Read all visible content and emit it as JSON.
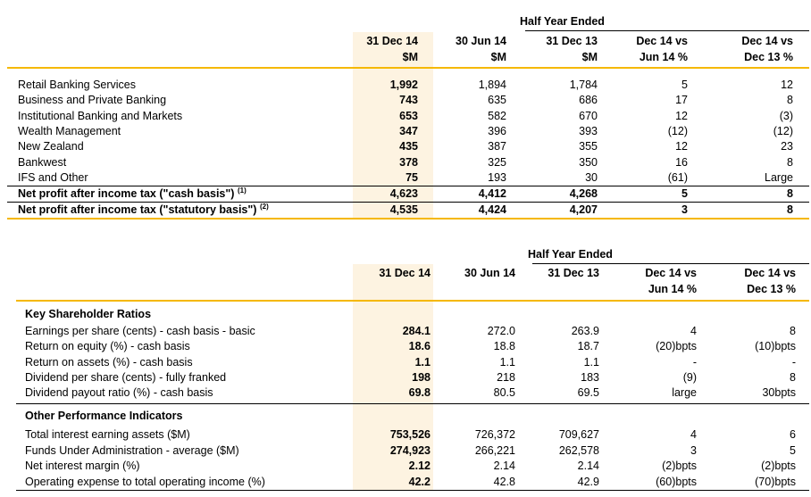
{
  "table1": {
    "group_header": "Half Year Ended",
    "columns": [
      {
        "line1": "31 Dec 14",
        "line2": "$M"
      },
      {
        "line1": "30 Jun 14",
        "line2": "$M"
      },
      {
        "line1": "31 Dec 13",
        "line2": "$M"
      },
      {
        "line1": "Dec 14 vs",
        "line2": "Jun 14 %"
      },
      {
        "line1": "Dec 14 vs",
        "line2": "Dec 13 %"
      }
    ],
    "rows": [
      {
        "label": "Retail Banking Services",
        "v": [
          "1,992",
          "1,894",
          "1,784",
          "5",
          "12"
        ]
      },
      {
        "label": "Business and Private Banking",
        "v": [
          "743",
          "635",
          "686",
          "17",
          "8"
        ]
      },
      {
        "label": "Institutional Banking and Markets",
        "v": [
          "653",
          "582",
          "670",
          "12",
          "(3)"
        ]
      },
      {
        "label": "Wealth Management",
        "v": [
          "347",
          "396",
          "393",
          "(12)",
          "(12)"
        ]
      },
      {
        "label": "New Zealand",
        "v": [
          "435",
          "387",
          "355",
          "12",
          "23"
        ]
      },
      {
        "label": "Bankwest",
        "v": [
          "378",
          "325",
          "350",
          "16",
          "8"
        ]
      },
      {
        "label": "IFS and Other",
        "v": [
          "75",
          "193",
          "30",
          "(61)",
          "Large"
        ]
      }
    ],
    "totals": [
      {
        "label": "Net profit after income tax (\"cash basis\")",
        "note": "(1)",
        "v": [
          "4,623",
          "4,412",
          "4,268",
          "5",
          "8"
        ]
      },
      {
        "label": "Net profit after income tax (\"statutory basis\")",
        "note": "(2)",
        "v": [
          "4,535",
          "4,424",
          "4,207",
          "3",
          "8"
        ]
      }
    ]
  },
  "table2": {
    "group_header": "Half Year Ended",
    "columns": [
      {
        "line1": "31 Dec 14",
        "line2": ""
      },
      {
        "line1": "30 Jun 14",
        "line2": ""
      },
      {
        "line1": "31 Dec 13",
        "line2": ""
      },
      {
        "line1": "Dec 14 vs",
        "line2": "Jun 14 %"
      },
      {
        "line1": "Dec 14 vs",
        "line2": "Dec 13 %"
      }
    ],
    "section1": {
      "title": "Key Shareholder Ratios",
      "rows": [
        {
          "label": "Earnings per share (cents) - cash basis - basic",
          "v": [
            "284.1",
            "272.0",
            "263.9",
            "4",
            "8"
          ]
        },
        {
          "label": "Return on equity (%) - cash basis",
          "v": [
            "18.6",
            "18.8",
            "18.7",
            "(20)bpts",
            "(10)bpts"
          ]
        },
        {
          "label": "Return on assets (%) - cash basis",
          "v": [
            "1.1",
            "1.1",
            "1.1",
            "-",
            "-"
          ]
        },
        {
          "label": "Dividend per share (cents) - fully franked",
          "v": [
            "198",
            "218",
            "183",
            "(9)",
            "8"
          ]
        },
        {
          "label": "Dividend payout ratio (%) - cash basis",
          "v": [
            "69.8",
            "80.5",
            "69.5",
            "large",
            "30bpts"
          ]
        }
      ]
    },
    "section2": {
      "title": "Other Performance Indicators",
      "rows": [
        {
          "label": "Total interest earning assets ($M)",
          "v": [
            "753,526",
            "726,372",
            "709,627",
            "4",
            "6"
          ]
        },
        {
          "label": "Funds Under Administration - average ($M)",
          "v": [
            "274,923",
            "266,221",
            "262,578",
            "3",
            "5"
          ]
        },
        {
          "label": "Net interest margin (%)",
          "v": [
            "2.12",
            "2.14",
            "2.14",
            "(2)bpts",
            "(2)bpts"
          ]
        },
        {
          "label": "Operating expense to total operating income (%)",
          "v": [
            "42.2",
            "42.8",
            "42.9",
            "(60)bpts",
            "(70)bpts"
          ]
        }
      ]
    }
  }
}
